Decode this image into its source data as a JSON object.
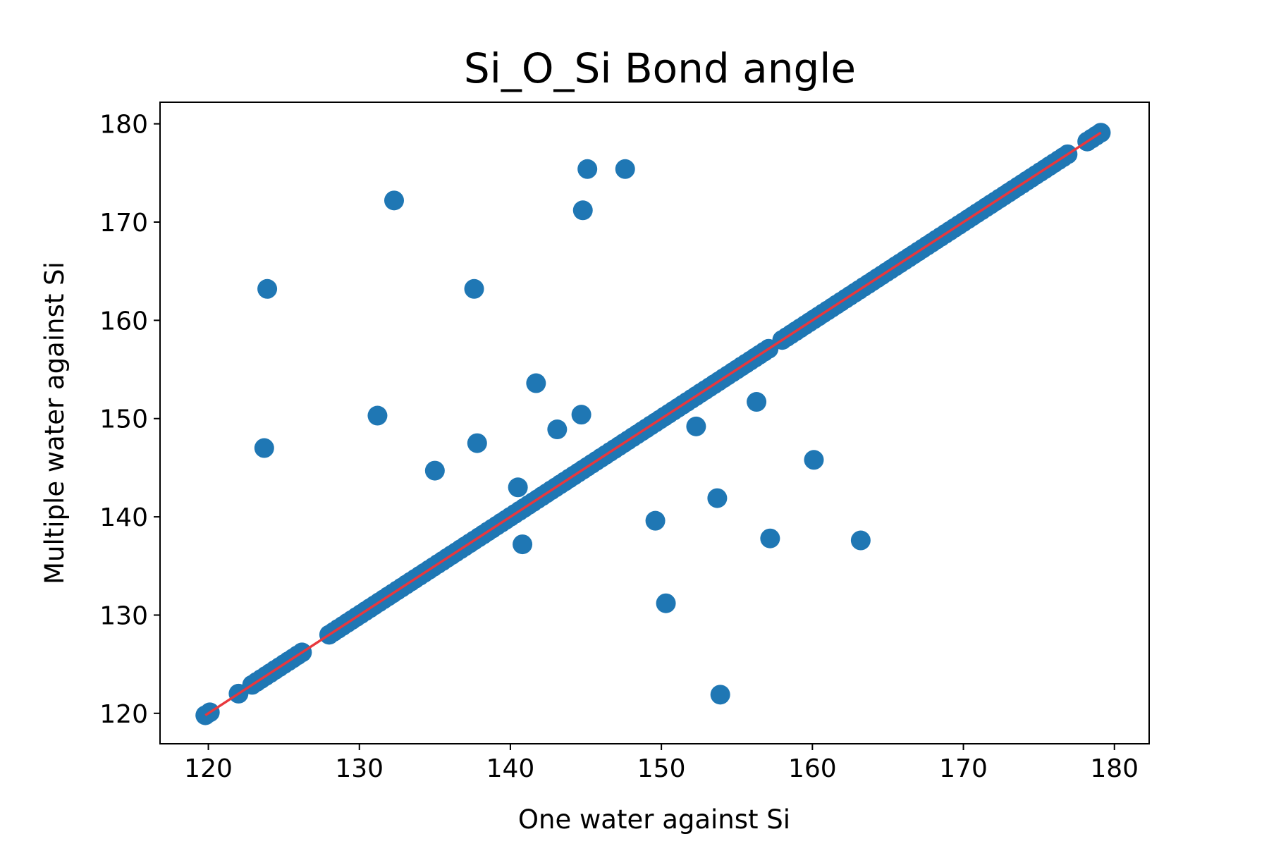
{
  "chart_data": {
    "type": "scatter",
    "title": "Si_O_Si Bond angle",
    "xlabel": "One water against Si",
    "ylabel": "Multiple water against Si",
    "xlim": [
      116.8,
      182.3
    ],
    "ylim": [
      116.9,
      182.2
    ],
    "xticks": [
      120,
      130,
      140,
      150,
      160,
      170,
      180
    ],
    "yticks": [
      120,
      130,
      140,
      150,
      160,
      170,
      180
    ],
    "grid": false,
    "legend": "none",
    "colors": {
      "points": "#1f77b4",
      "fit_line": "#e8383d",
      "frame": "#000000"
    },
    "diagonal_runs": [
      [
        119.8,
        120.2
      ],
      [
        122.0,
        122.2
      ],
      [
        122.9,
        126.2
      ],
      [
        128.0,
        157.3
      ],
      [
        158.0,
        177.1
      ],
      [
        178.2,
        179.1
      ]
    ],
    "diagonal_step": 0.3,
    "outliers": [
      {
        "x": 123.7,
        "y": 147.0
      },
      {
        "x": 123.9,
        "y": 163.2
      },
      {
        "x": 131.2,
        "y": 150.3
      },
      {
        "x": 132.3,
        "y": 172.2
      },
      {
        "x": 135.0,
        "y": 144.7
      },
      {
        "x": 137.6,
        "y": 163.2
      },
      {
        "x": 137.8,
        "y": 147.5
      },
      {
        "x": 140.5,
        "y": 143.0
      },
      {
        "x": 140.8,
        "y": 137.2
      },
      {
        "x": 141.7,
        "y": 153.6
      },
      {
        "x": 143.1,
        "y": 148.9
      },
      {
        "x": 144.7,
        "y": 150.4
      },
      {
        "x": 144.8,
        "y": 171.2
      },
      {
        "x": 145.1,
        "y": 175.4
      },
      {
        "x": 147.6,
        "y": 175.4
      },
      {
        "x": 149.6,
        "y": 139.6
      },
      {
        "x": 150.3,
        "y": 131.2
      },
      {
        "x": 152.3,
        "y": 149.2
      },
      {
        "x": 153.7,
        "y": 141.9
      },
      {
        "x": 153.9,
        "y": 121.9
      },
      {
        "x": 156.3,
        "y": 151.7
      },
      {
        "x": 157.2,
        "y": 137.8
      },
      {
        "x": 160.1,
        "y": 145.8
      },
      {
        "x": 163.2,
        "y": 137.6
      }
    ],
    "fit_line": {
      "x": [
        119.8,
        179.1
      ],
      "y": [
        119.8,
        179.1
      ]
    }
  }
}
